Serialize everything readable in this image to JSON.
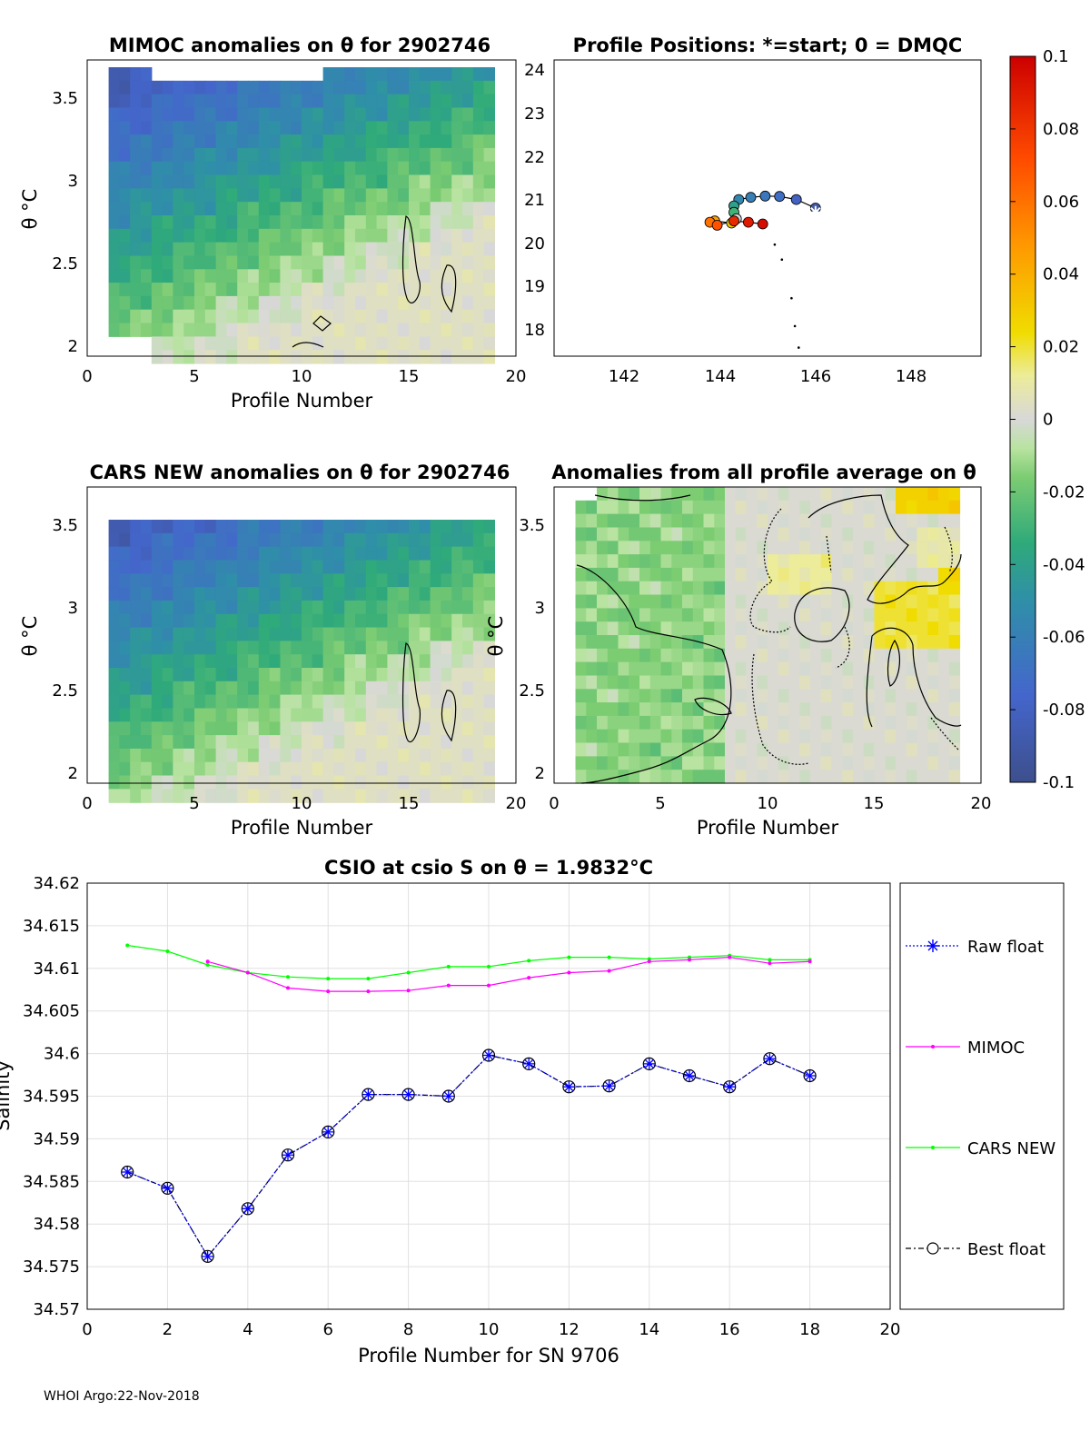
{
  "footer": "WHOI Argo:22-Nov-2018",
  "colorbar": {
    "tick_labels": [
      "0.1",
      "0.08",
      "0.06",
      "0.04",
      "0.02",
      "0",
      "-0.02",
      "-0.04",
      "-0.06",
      "-0.08",
      "-0.1"
    ],
    "range": [
      -0.1,
      0.1
    ]
  },
  "chart_data": [
    {
      "id": "mimoc",
      "type": "heatmap",
      "title": "MIMOC anomalies on θ  for 2902746",
      "xlabel": "Profile Number",
      "ylabel": "θ °C",
      "xlim": [
        0,
        20
      ],
      "ylim": [
        1.93,
        3.7
      ],
      "x_ticks": [
        "0",
        "5",
        "10",
        "15",
        "20"
      ],
      "y_ticks": [
        "2",
        "2.5",
        "3",
        "3.5"
      ]
    },
    {
      "id": "positions",
      "type": "scatter",
      "title": "Profile Positions: *=start; 0 = DMQC",
      "xlim": [
        140.6,
        149.5
      ],
      "ylim": [
        17.4,
        24.3
      ],
      "x_ticks": [
        "142",
        "144",
        "146",
        "148"
      ],
      "y_ticks": [
        "18",
        "19",
        "20",
        "21",
        "22",
        "23",
        "24"
      ],
      "start": {
        "lon": 146.05,
        "lat": 20.75
      },
      "points": [
        {
          "lon": 146.05,
          "lat": 20.85,
          "value": -0.09
        },
        {
          "lon": 145.65,
          "lat": 21.05,
          "value": -0.08
        },
        {
          "lon": 145.3,
          "lat": 21.12,
          "value": -0.07
        },
        {
          "lon": 145.0,
          "lat": 21.13,
          "value": -0.065
        },
        {
          "lon": 144.7,
          "lat": 21.1,
          "value": -0.06
        },
        {
          "lon": 144.45,
          "lat": 21.05,
          "value": -0.055
        },
        {
          "lon": 144.35,
          "lat": 20.9,
          "value": -0.04
        },
        {
          "lon": 144.35,
          "lat": 20.75,
          "value": -0.03
        },
        {
          "lon": 144.4,
          "lat": 20.6,
          "value": 0.0
        },
        {
          "lon": 144.3,
          "lat": 20.5,
          "value": 0.03
        },
        {
          "lon": 143.95,
          "lat": 20.55,
          "value": 0.045
        },
        {
          "lon": 143.85,
          "lat": 20.52,
          "value": 0.06
        },
        {
          "lon": 144.0,
          "lat": 20.45,
          "value": 0.07
        },
        {
          "lon": 144.35,
          "lat": 20.55,
          "value": 0.085
        },
        {
          "lon": 144.65,
          "lat": 20.52,
          "value": 0.09
        },
        {
          "lon": 144.95,
          "lat": 20.48,
          "value": 0.095
        }
      ],
      "track": [
        {
          "lon": 145.2,
          "lat": 20.0
        },
        {
          "lon": 145.35,
          "lat": 19.65
        },
        {
          "lon": 145.55,
          "lat": 18.75
        },
        {
          "lon": 145.62,
          "lat": 18.1
        },
        {
          "lon": 145.7,
          "lat": 17.6
        }
      ]
    },
    {
      "id": "cars",
      "type": "heatmap",
      "title": "CARS NEW anomalies on θ for 2902746",
      "xlabel": "Profile Number",
      "ylabel": "θ °C",
      "xlim": [
        0,
        20
      ],
      "ylim": [
        1.93,
        3.7
      ],
      "x_ticks": [
        "0",
        "5",
        "10",
        "15",
        "20"
      ],
      "y_ticks": [
        "2",
        "2.5",
        "3",
        "3.5"
      ]
    },
    {
      "id": "allavg",
      "type": "heatmap",
      "title": "Anomalies from all profile average on θ",
      "xlabel": "Profile Number",
      "ylabel": "θ °C",
      "xlim": [
        0,
        20
      ],
      "ylim": [
        1.93,
        3.7
      ],
      "x_ticks": [
        "0",
        "5",
        "10",
        "15",
        "20"
      ],
      "y_ticks": [
        "2",
        "2.5",
        "3",
        "3.5"
      ]
    },
    {
      "id": "csio",
      "type": "line",
      "title": "CSIO at csio S on θ = 1.9832°C",
      "xlabel": "Profile Number for SN 9706",
      "ylabel": "Salinity",
      "xlim": [
        0,
        20
      ],
      "ylim": [
        34.57,
        34.62
      ],
      "x_ticks": [
        "0",
        "2",
        "4",
        "6",
        "8",
        "10",
        "12",
        "14",
        "16",
        "18",
        "20"
      ],
      "y_ticks": [
        "34.57",
        "34.575",
        "34.58",
        "34.585",
        "34.59",
        "34.595",
        "34.6",
        "34.605",
        "34.61",
        "34.615",
        "34.62"
      ],
      "series": [
        {
          "name": "Raw float",
          "color": "#0000ff",
          "x": [
            1,
            2,
            3,
            4,
            5,
            6,
            7,
            8,
            9,
            10,
            11,
            12,
            13,
            14,
            15,
            16,
            17,
            18
          ],
          "values": [
            34.5861,
            34.5842,
            34.5762,
            34.5818,
            34.5881,
            34.5908,
            34.5952,
            34.5952,
            34.595,
            34.5998,
            34.5988,
            34.5961,
            34.5962,
            34.5988,
            34.5974,
            34.5961,
            34.5994,
            34.5974
          ]
        },
        {
          "name": "MIMOC",
          "color": "#ff00ff",
          "x": [
            3,
            4,
            5,
            6,
            7,
            8,
            9,
            10,
            11,
            12,
            13,
            14,
            15,
            16,
            17,
            18
          ],
          "values": [
            34.6108,
            34.6095,
            34.6077,
            34.6073,
            34.6073,
            34.6074,
            34.608,
            34.608,
            34.6089,
            34.6095,
            34.6097,
            34.6108,
            34.611,
            34.6113,
            34.6106,
            34.6108
          ]
        },
        {
          "name": "CARS NEW",
          "color": "#00ff00",
          "x": [
            1,
            2,
            3,
            4,
            5,
            6,
            7,
            8,
            9,
            10,
            11,
            12,
            13,
            14,
            15,
            16,
            17,
            18
          ],
          "values": [
            34.6127,
            34.612,
            34.6104,
            34.6095,
            34.609,
            34.6088,
            34.6088,
            34.6095,
            34.6102,
            34.6102,
            34.6109,
            34.6113,
            34.6113,
            34.6111,
            34.6113,
            34.6115,
            34.611,
            34.611
          ]
        },
        {
          "name": "Best float",
          "color": "#000000",
          "x": [
            1,
            2,
            3,
            4,
            5,
            6,
            7,
            8,
            9,
            10,
            11,
            12,
            13,
            14,
            15,
            16,
            17,
            18
          ],
          "values": [
            34.5861,
            34.5842,
            34.5762,
            34.5818,
            34.5881,
            34.5908,
            34.5952,
            34.5952,
            34.595,
            34.5998,
            34.5988,
            34.5961,
            34.5962,
            34.5988,
            34.5974,
            34.5961,
            34.5994,
            34.5974
          ]
        }
      ]
    }
  ]
}
